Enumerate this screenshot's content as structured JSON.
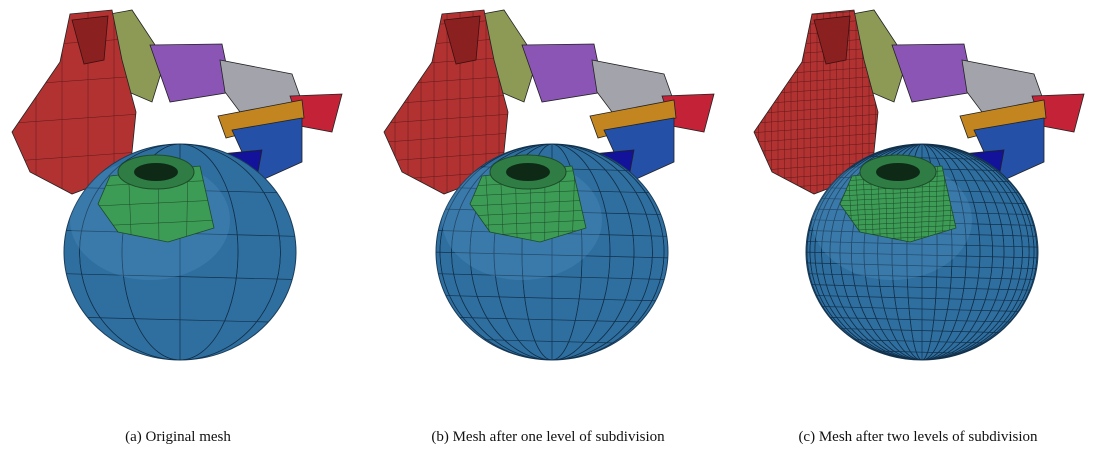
{
  "figure": {
    "panels": [
      {
        "caption": "(a) Original mesh"
      },
      {
        "caption": "(b) Mesh after one level of subdivision"
      },
      {
        "caption": "(c) Mesh after two levels of subdivision"
      }
    ]
  }
}
